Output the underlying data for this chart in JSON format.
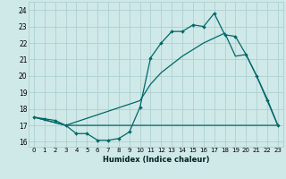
{
  "xlabel": "Humidex (Indice chaleur)",
  "background_color": "#cfe8e8",
  "grid_color": "#a8cccc",
  "line_color": "#006868",
  "ylim": [
    15.7,
    24.5
  ],
  "xlim": [
    -0.5,
    23.5
  ],
  "yticks": [
    16,
    17,
    18,
    19,
    20,
    21,
    22,
    23,
    24
  ],
  "xticks": [
    0,
    1,
    2,
    3,
    4,
    5,
    6,
    7,
    8,
    9,
    10,
    11,
    12,
    13,
    14,
    15,
    16,
    17,
    18,
    19,
    20,
    21,
    22,
    23
  ],
  "line1_x": [
    0,
    1,
    2,
    3,
    4,
    5,
    6,
    7,
    8,
    9,
    10,
    11,
    12,
    13,
    14,
    15,
    16,
    17,
    18,
    19,
    20,
    21,
    22,
    23
  ],
  "line1_y": [
    17.5,
    17.4,
    17.3,
    17.0,
    16.5,
    16.5,
    16.1,
    16.1,
    16.2,
    16.6,
    18.1,
    21.1,
    22.0,
    22.7,
    22.7,
    23.1,
    23.0,
    23.8,
    22.5,
    22.4,
    21.3,
    20.0,
    18.5,
    17.0
  ],
  "line2_x": [
    0,
    3,
    23
  ],
  "line2_y": [
    17.5,
    17.0,
    17.0
  ],
  "line3_x": [
    0,
    3,
    10,
    11,
    12,
    13,
    14,
    15,
    16,
    17,
    18,
    19,
    20,
    21,
    22,
    23
  ],
  "line3_y": [
    17.5,
    17.0,
    18.5,
    19.5,
    20.2,
    20.7,
    21.2,
    21.6,
    22.0,
    22.3,
    22.6,
    21.2,
    21.3,
    20.0,
    18.6,
    17.0
  ]
}
